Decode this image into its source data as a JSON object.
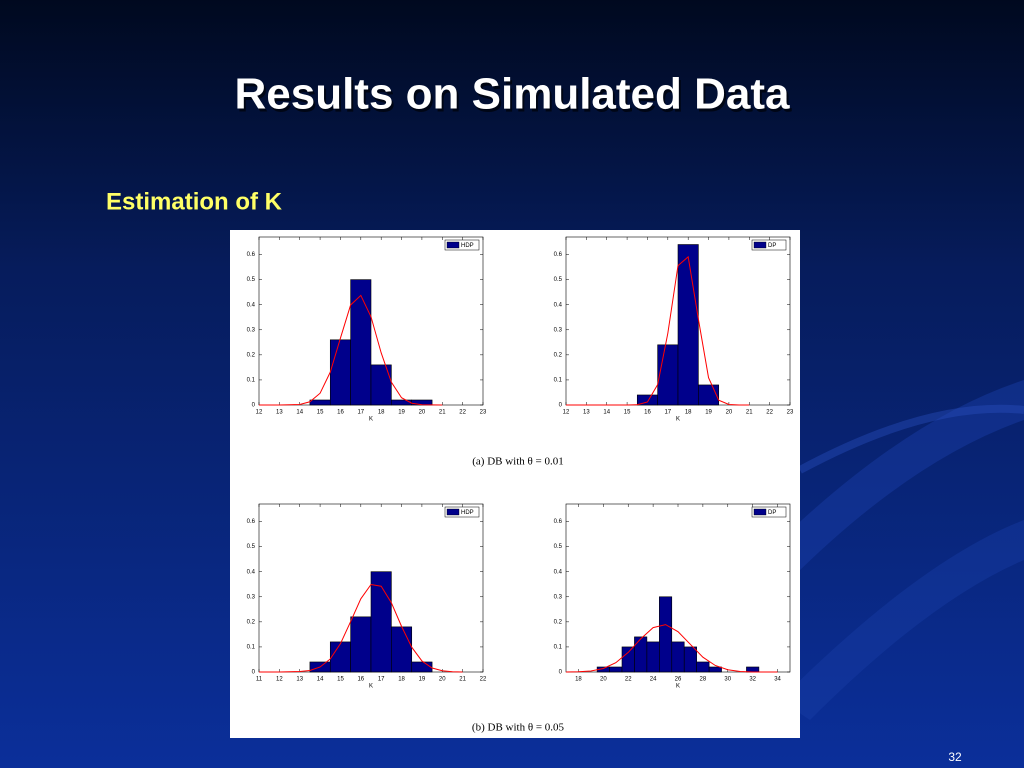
{
  "title": "Results on Simulated Data",
  "subtitle": "Estimation of K",
  "captions": [
    "(a) DB with θ = 0.01",
    "(b) DB with θ = 0.05"
  ],
  "page_number": "32",
  "chart_data": [
    {
      "type": "histogram",
      "name": "HDP",
      "color": "#00008b",
      "xlabel": "K",
      "bins": [
        14.5,
        15.5,
        16.5,
        17.5,
        18.5,
        19.5,
        20.5
      ],
      "values": [
        0.02,
        0.26,
        0.5,
        0.16,
        0.02,
        0.02
      ],
      "fit": {
        "color": "#ff0000",
        "x": [
          12,
          13,
          14,
          14.5,
          15,
          15.5,
          16,
          16.5,
          17,
          17.5,
          18,
          18.5,
          19,
          19.5,
          20,
          21
        ],
        "values": [
          0,
          0,
          0.002,
          0.013,
          0.047,
          0.131,
          0.267,
          0.399,
          0.437,
          0.352,
          0.208,
          0.091,
          0.029,
          0.007,
          0.001,
          0
        ]
      },
      "xlim": [
        12,
        23
      ],
      "xticks": [
        12,
        13,
        14,
        15,
        16,
        17,
        18,
        19,
        20,
        21,
        22,
        23
      ],
      "ylim": [
        0,
        0.67
      ],
      "yticks": [
        0,
        0.1,
        0.2,
        0.3,
        0.4,
        0.5,
        0.6
      ]
    },
    {
      "type": "histogram",
      "name": "DP",
      "color": "#00008b",
      "xlabel": "K",
      "bins": [
        15.5,
        16.5,
        17.5,
        18.5,
        19.5
      ],
      "values": [
        0.04,
        0.24,
        0.64,
        0.08
      ],
      "fit": {
        "color": "#ff0000",
        "x": [
          12,
          15,
          15.5,
          16,
          16.5,
          17,
          17.5,
          18,
          18.5,
          19,
          19.5,
          20,
          20.5,
          21
        ],
        "values": [
          0,
          0,
          0.001,
          0.012,
          0.081,
          0.286,
          0.556,
          0.591,
          0.343,
          0.109,
          0.019,
          0.002,
          0,
          0
        ]
      },
      "xlim": [
        12,
        23
      ],
      "xticks": [
        12,
        13,
        14,
        15,
        16,
        17,
        18,
        19,
        20,
        21,
        22,
        23
      ],
      "ylim": [
        0,
        0.67
      ],
      "yticks": [
        0,
        0.1,
        0.2,
        0.3,
        0.4,
        0.5,
        0.6
      ]
    },
    {
      "type": "histogram",
      "name": "HDP",
      "color": "#00008b",
      "xlabel": "K",
      "bins": [
        13.5,
        14.5,
        15.5,
        16.5,
        17.5,
        18.5,
        19.5
      ],
      "values": [
        0.04,
        0.12,
        0.22,
        0.4,
        0.18,
        0.04
      ],
      "fit": {
        "color": "#ff0000",
        "x": [
          11,
          12,
          13,
          13.5,
          14,
          14.5,
          15,
          15.5,
          16,
          16.5,
          17,
          17.5,
          18,
          18.5,
          19,
          19.5,
          20,
          20.5,
          21
        ],
        "values": [
          0,
          0,
          0.002,
          0.006,
          0.02,
          0.052,
          0.113,
          0.201,
          0.292,
          0.349,
          0.342,
          0.276,
          0.182,
          0.099,
          0.044,
          0.016,
          0.005,
          0.001,
          0
        ]
      },
      "xlim": [
        11,
        22
      ],
      "xticks": [
        11,
        12,
        13,
        14,
        15,
        16,
        17,
        18,
        19,
        20,
        21,
        22
      ],
      "ylim": [
        0,
        0.67
      ],
      "yticks": [
        0,
        0.1,
        0.2,
        0.3,
        0.4,
        0.5,
        0.6
      ]
    },
    {
      "type": "histogram",
      "name": "DP",
      "color": "#00008b",
      "xlabel": "K",
      "bins": [
        19.5,
        20.5,
        21.5,
        22.5,
        23.5,
        24.5,
        25.5,
        26.5,
        27.5,
        28.5,
        29.5,
        30.5,
        31.5,
        32.5
      ],
      "values": [
        0.02,
        0.02,
        0.1,
        0.14,
        0.12,
        0.3,
        0.12,
        0.1,
        0.04,
        0.02,
        0,
        0,
        0.02
      ],
      "fit": {
        "color": "#ff0000",
        "x": [
          17,
          18,
          19,
          20,
          21,
          22,
          23,
          24,
          25,
          26,
          27,
          28,
          29,
          30,
          31,
          32,
          34
        ],
        "values": [
          0,
          0.001,
          0.004,
          0.014,
          0.037,
          0.078,
          0.132,
          0.177,
          0.189,
          0.161,
          0.11,
          0.059,
          0.026,
          0.009,
          0.002,
          0,
          0
        ]
      },
      "xlim": [
        17,
        35
      ],
      "xticks": [
        18,
        20,
        22,
        24,
        26,
        28,
        30,
        32,
        34
      ],
      "ylim": [
        0,
        0.67
      ],
      "yticks": [
        0,
        0.1,
        0.2,
        0.3,
        0.4,
        0.5,
        0.6
      ]
    }
  ]
}
